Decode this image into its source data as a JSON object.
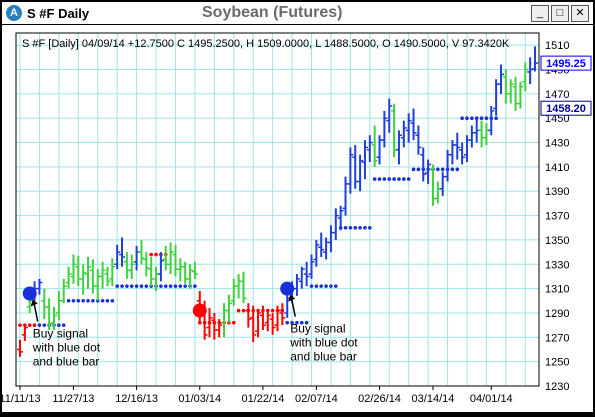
{
  "window": {
    "name": "S #F Daily",
    "title": "Soybean (Futures)",
    "buttons": {
      "minimize": "_",
      "maximize": "□",
      "close": "✕"
    }
  },
  "chart_data": {
    "type": "ohlc",
    "info_line": "S #F [Daily] 04/09/14 +12.7500 C 1495.2500, H 1509.0000, L 1488.5000, O 1490.5000, V 97.3420K",
    "ylim": [
      1230,
      1520
    ],
    "y_ticks": [
      "1510",
      "1490",
      "1470",
      "1450",
      "1430",
      "1410",
      "1390",
      "1370",
      "1350",
      "1330",
      "1310",
      "1290",
      "1270",
      "1250",
      "1230"
    ],
    "x_ticks": [
      "11/11/13",
      "11/27/13",
      "12/16/13",
      "01/03/14",
      "01/22/14",
      "02/07/14",
      "02/26/14",
      "03/14/14",
      "04/01/14"
    ],
    "x_tick_index": [
      0,
      11,
      24,
      37,
      50,
      61,
      74,
      85,
      97
    ],
    "price_labels": [
      {
        "value": 1495.25,
        "text": "1495.25",
        "color": "#0000ff"
      },
      {
        "value": 1458.2,
        "text": "1458.20",
        "color": "#000099"
      }
    ],
    "colors": {
      "up": "#3dd13d",
      "down": "#1f3fd9",
      "red": "#ff0000",
      "grid": "#9fe5e5",
      "dot_blue": "#1730d8",
      "dot_red": "#ff0000"
    },
    "bars": [
      {
        "o": 1260,
        "h": 1268,
        "l": 1254,
        "c": 1258,
        "color": "red"
      },
      {
        "o": 1272,
        "h": 1281,
        "l": 1267,
        "c": 1278,
        "color": "red"
      },
      {
        "o": 1295,
        "h": 1308,
        "l": 1290,
        "c": 1300,
        "color": "green"
      },
      {
        "o": 1305,
        "h": 1316,
        "l": 1300,
        "c": 1310,
        "color": "blue"
      },
      {
        "o": 1310,
        "h": 1318,
        "l": 1305,
        "c": 1315,
        "color": "blue"
      },
      {
        "o": 1300,
        "h": 1310,
        "l": 1285,
        "c": 1295,
        "color": "green"
      },
      {
        "o": 1295,
        "h": 1302,
        "l": 1276,
        "c": 1281,
        "color": "green"
      },
      {
        "o": 1282,
        "h": 1295,
        "l": 1276,
        "c": 1288,
        "color": "green"
      },
      {
        "o": 1290,
        "h": 1308,
        "l": 1284,
        "c": 1300,
        "color": "green"
      },
      {
        "o": 1300,
        "h": 1318,
        "l": 1298,
        "c": 1312,
        "color": "green"
      },
      {
        "o": 1315,
        "h": 1328,
        "l": 1310,
        "c": 1322,
        "color": "green"
      },
      {
        "o": 1320,
        "h": 1338,
        "l": 1314,
        "c": 1330,
        "color": "green"
      },
      {
        "o": 1328,
        "h": 1337,
        "l": 1312,
        "c": 1318,
        "color": "green"
      },
      {
        "o": 1318,
        "h": 1330,
        "l": 1305,
        "c": 1323,
        "color": "green"
      },
      {
        "o": 1322,
        "h": 1336,
        "l": 1310,
        "c": 1328,
        "color": "green"
      },
      {
        "o": 1325,
        "h": 1334,
        "l": 1306,
        "c": 1312,
        "color": "green"
      },
      {
        "o": 1312,
        "h": 1326,
        "l": 1300,
        "c": 1320,
        "color": "green"
      },
      {
        "o": 1320,
        "h": 1332,
        "l": 1310,
        "c": 1325,
        "color": "green"
      },
      {
        "o": 1322,
        "h": 1328,
        "l": 1312,
        "c": 1316,
        "color": "green"
      },
      {
        "o": 1318,
        "h": 1335,
        "l": 1312,
        "c": 1328,
        "color": "green"
      },
      {
        "o": 1330,
        "h": 1346,
        "l": 1326,
        "c": 1340,
        "color": "blue"
      },
      {
        "o": 1338,
        "h": 1352,
        "l": 1328,
        "c": 1336,
        "color": "blue"
      },
      {
        "o": 1332,
        "h": 1340,
        "l": 1318,
        "c": 1325,
        "color": "green"
      },
      {
        "o": 1325,
        "h": 1338,
        "l": 1318,
        "c": 1330,
        "color": "green"
      },
      {
        "o": 1332,
        "h": 1345,
        "l": 1325,
        "c": 1340,
        "color": "blue"
      },
      {
        "o": 1340,
        "h": 1350,
        "l": 1330,
        "c": 1335,
        "color": "green"
      },
      {
        "o": 1334,
        "h": 1340,
        "l": 1320,
        "c": 1327,
        "color": "green"
      },
      {
        "o": 1326,
        "h": 1336,
        "l": 1312,
        "c": 1318,
        "color": "green"
      },
      {
        "o": 1318,
        "h": 1328,
        "l": 1308,
        "c": 1322,
        "color": "green"
      },
      {
        "o": 1322,
        "h": 1340,
        "l": 1316,
        "c": 1333,
        "color": "blue"
      },
      {
        "o": 1334,
        "h": 1345,
        "l": 1325,
        "c": 1330,
        "color": "green"
      },
      {
        "o": 1330,
        "h": 1348,
        "l": 1322,
        "c": 1340,
        "color": "green"
      },
      {
        "o": 1338,
        "h": 1346,
        "l": 1320,
        "c": 1326,
        "color": "green"
      },
      {
        "o": 1326,
        "h": 1335,
        "l": 1316,
        "c": 1328,
        "color": "green"
      },
      {
        "o": 1328,
        "h": 1332,
        "l": 1314,
        "c": 1318,
        "color": "green"
      },
      {
        "o": 1318,
        "h": 1330,
        "l": 1310,
        "c": 1325,
        "color": "green"
      },
      {
        "o": 1324,
        "h": 1332,
        "l": 1318,
        "c": 1322,
        "color": "green"
      },
      {
        "o": 1300,
        "h": 1308,
        "l": 1282,
        "c": 1288,
        "color": "red"
      },
      {
        "o": 1292,
        "h": 1300,
        "l": 1268,
        "c": 1272,
        "color": "red"
      },
      {
        "o": 1278,
        "h": 1294,
        "l": 1270,
        "c": 1286,
        "color": "red"
      },
      {
        "o": 1284,
        "h": 1290,
        "l": 1268,
        "c": 1276,
        "color": "red"
      },
      {
        "o": 1276,
        "h": 1285,
        "l": 1270,
        "c": 1280,
        "color": "red"
      },
      {
        "o": 1282,
        "h": 1298,
        "l": 1270,
        "c": 1292,
        "color": "green"
      },
      {
        "o": 1292,
        "h": 1305,
        "l": 1282,
        "c": 1298,
        "color": "green"
      },
      {
        "o": 1300,
        "h": 1318,
        "l": 1296,
        "c": 1312,
        "color": "green"
      },
      {
        "o": 1312,
        "h": 1322,
        "l": 1302,
        "c": 1316,
        "color": "green"
      },
      {
        "o": 1316,
        "h": 1324,
        "l": 1298,
        "c": 1302,
        "color": "green"
      },
      {
        "o": 1292,
        "h": 1298,
        "l": 1278,
        "c": 1285,
        "color": "red"
      },
      {
        "o": 1286,
        "h": 1296,
        "l": 1266,
        "c": 1272,
        "color": "red"
      },
      {
        "o": 1275,
        "h": 1292,
        "l": 1270,
        "c": 1290,
        "color": "red"
      },
      {
        "o": 1288,
        "h": 1296,
        "l": 1276,
        "c": 1280,
        "color": "red"
      },
      {
        "o": 1282,
        "h": 1292,
        "l": 1275,
        "c": 1288,
        "color": "red"
      },
      {
        "o": 1285,
        "h": 1290,
        "l": 1272,
        "c": 1278,
        "color": "red"
      },
      {
        "o": 1280,
        "h": 1296,
        "l": 1275,
        "c": 1292,
        "color": "red"
      },
      {
        "o": 1290,
        "h": 1298,
        "l": 1280,
        "c": 1286,
        "color": "red"
      },
      {
        "o": 1290,
        "h": 1308,
        "l": 1286,
        "c": 1302,
        "color": "blue"
      },
      {
        "o": 1302,
        "h": 1316,
        "l": 1298,
        "c": 1310,
        "color": "blue"
      },
      {
        "o": 1310,
        "h": 1322,
        "l": 1304,
        "c": 1318,
        "color": "blue"
      },
      {
        "o": 1316,
        "h": 1328,
        "l": 1310,
        "c": 1326,
        "color": "blue"
      },
      {
        "o": 1322,
        "h": 1332,
        "l": 1312,
        "c": 1320,
        "color": "blue"
      },
      {
        "o": 1322,
        "h": 1338,
        "l": 1318,
        "c": 1332,
        "color": "blue"
      },
      {
        "o": 1334,
        "h": 1350,
        "l": 1328,
        "c": 1346,
        "color": "blue"
      },
      {
        "o": 1344,
        "h": 1356,
        "l": 1336,
        "c": 1342,
        "color": "blue"
      },
      {
        "o": 1340,
        "h": 1352,
        "l": 1334,
        "c": 1348,
        "color": "blue"
      },
      {
        "o": 1348,
        "h": 1362,
        "l": 1340,
        "c": 1356,
        "color": "blue"
      },
      {
        "o": 1356,
        "h": 1376,
        "l": 1350,
        "c": 1370,
        "color": "blue"
      },
      {
        "o": 1368,
        "h": 1378,
        "l": 1358,
        "c": 1374,
        "color": "blue"
      },
      {
        "o": 1376,
        "h": 1402,
        "l": 1370,
        "c": 1396,
        "color": "blue"
      },
      {
        "o": 1396,
        "h": 1426,
        "l": 1388,
        "c": 1420,
        "color": "blue"
      },
      {
        "o": 1418,
        "h": 1428,
        "l": 1392,
        "c": 1398,
        "color": "blue"
      },
      {
        "o": 1398,
        "h": 1420,
        "l": 1390,
        "c": 1415,
        "color": "blue"
      },
      {
        "o": 1414,
        "h": 1432,
        "l": 1400,
        "c": 1426,
        "color": "blue"
      },
      {
        "o": 1424,
        "h": 1436,
        "l": 1414,
        "c": 1430,
        "color": "blue"
      },
      {
        "o": 1428,
        "h": 1444,
        "l": 1410,
        "c": 1415,
        "color": "green"
      },
      {
        "o": 1418,
        "h": 1436,
        "l": 1412,
        "c": 1432,
        "color": "blue"
      },
      {
        "o": 1432,
        "h": 1456,
        "l": 1426,
        "c": 1450,
        "color": "blue"
      },
      {
        "o": 1448,
        "h": 1466,
        "l": 1438,
        "c": 1460,
        "color": "blue"
      },
      {
        "o": 1456,
        "h": 1462,
        "l": 1418,
        "c": 1424,
        "color": "green"
      },
      {
        "o": 1424,
        "h": 1440,
        "l": 1412,
        "c": 1436,
        "color": "blue"
      },
      {
        "o": 1434,
        "h": 1448,
        "l": 1426,
        "c": 1442,
        "color": "blue"
      },
      {
        "o": 1440,
        "h": 1454,
        "l": 1430,
        "c": 1448,
        "color": "blue"
      },
      {
        "o": 1446,
        "h": 1458,
        "l": 1432,
        "c": 1438,
        "color": "blue"
      },
      {
        "o": 1436,
        "h": 1444,
        "l": 1420,
        "c": 1426,
        "color": "blue"
      },
      {
        "o": 1420,
        "h": 1426,
        "l": 1398,
        "c": 1404,
        "color": "blue"
      },
      {
        "o": 1405,
        "h": 1416,
        "l": 1396,
        "c": 1412,
        "color": "blue"
      },
      {
        "o": 1408,
        "h": 1412,
        "l": 1378,
        "c": 1384,
        "color": "green"
      },
      {
        "o": 1384,
        "h": 1398,
        "l": 1380,
        "c": 1392,
        "color": "green"
      },
      {
        "o": 1392,
        "h": 1406,
        "l": 1386,
        "c": 1402,
        "color": "blue"
      },
      {
        "o": 1402,
        "h": 1424,
        "l": 1398,
        "c": 1420,
        "color": "blue"
      },
      {
        "o": 1420,
        "h": 1432,
        "l": 1412,
        "c": 1428,
        "color": "blue"
      },
      {
        "o": 1428,
        "h": 1438,
        "l": 1416,
        "c": 1426,
        "color": "blue"
      },
      {
        "o": 1424,
        "h": 1430,
        "l": 1412,
        "c": 1418,
        "color": "blue"
      },
      {
        "o": 1420,
        "h": 1436,
        "l": 1414,
        "c": 1432,
        "color": "blue"
      },
      {
        "o": 1432,
        "h": 1444,
        "l": 1426,
        "c": 1438,
        "color": "blue"
      },
      {
        "o": 1438,
        "h": 1450,
        "l": 1430,
        "c": 1440,
        "color": "blue"
      },
      {
        "o": 1440,
        "h": 1448,
        "l": 1426,
        "c": 1434,
        "color": "green"
      },
      {
        "o": 1434,
        "h": 1446,
        "l": 1428,
        "c": 1440,
        "color": "green"
      },
      {
        "o": 1440,
        "h": 1460,
        "l": 1436,
        "c": 1456,
        "color": "blue"
      },
      {
        "o": 1458,
        "h": 1482,
        "l": 1452,
        "c": 1478,
        "color": "blue"
      },
      {
        "o": 1478,
        "h": 1494,
        "l": 1470,
        "c": 1486,
        "color": "blue"
      },
      {
        "o": 1484,
        "h": 1490,
        "l": 1462,
        "c": 1470,
        "color": "green"
      },
      {
        "o": 1470,
        "h": 1482,
        "l": 1462,
        "c": 1478,
        "color": "green"
      },
      {
        "o": 1476,
        "h": 1484,
        "l": 1456,
        "c": 1462,
        "color": "green"
      },
      {
        "o": 1462,
        "h": 1480,
        "l": 1458,
        "c": 1476,
        "color": "green"
      },
      {
        "o": 1480,
        "h": 1496,
        "l": 1472,
        "c": 1490,
        "color": "green"
      },
      {
        "o": 1488,
        "h": 1500,
        "l": 1478,
        "c": 1490,
        "color": "blue"
      },
      {
        "o": 1490.5,
        "h": 1509,
        "l": 1488.5,
        "c": 1495.25,
        "color": "blue"
      }
    ],
    "stops": [
      {
        "start": 0,
        "end": 3,
        "value": 1280,
        "color": "red"
      },
      {
        "start": 4,
        "end": 9,
        "value": 1280,
        "color": "blue"
      },
      {
        "start": 10,
        "end": 19,
        "value": 1300,
        "color": "blue"
      },
      {
        "start": 20,
        "end": 36,
        "value": 1312,
        "color": "blue"
      },
      {
        "start": 27,
        "end": 30,
        "value": 1338,
        "color": "red"
      },
      {
        "start": 37,
        "end": 44,
        "value": 1282,
        "color": "red"
      },
      {
        "start": 45,
        "end": 54,
        "value": 1292,
        "color": "red"
      },
      {
        "start": 55,
        "end": 59,
        "value": 1282,
        "color": "blue"
      },
      {
        "start": 60,
        "end": 65,
        "value": 1312,
        "color": "blue"
      },
      {
        "start": 66,
        "end": 72,
        "value": 1360,
        "color": "blue"
      },
      {
        "start": 73,
        "end": 80,
        "value": 1400,
        "color": "blue"
      },
      {
        "start": 81,
        "end": 90,
        "value": 1408,
        "color": "blue"
      },
      {
        "start": 91,
        "end": 98,
        "value": 1450,
        "color": "blue"
      }
    ],
    "signals": [
      {
        "index": 2,
        "value": 1306,
        "color": "blue"
      },
      {
        "index": 37,
        "value": 1292,
        "color": "red"
      },
      {
        "index": 55,
        "value": 1310,
        "color": "blue"
      }
    ],
    "annotations": [
      {
        "lines": [
          "Buy signal",
          "with blue dot",
          "and blue bar"
        ],
        "target_index": 2,
        "target_value": 1306
      },
      {
        "lines": [
          "Buy signal",
          "with blue dot",
          "and blue bar"
        ],
        "target_index": 55,
        "target_value": 1310
      }
    ]
  }
}
